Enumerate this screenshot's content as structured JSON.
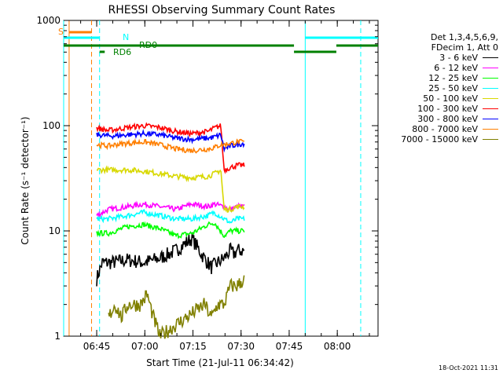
{
  "chart_data": {
    "type": "line",
    "title": "RHESSI Observing Summary Count Rates",
    "xlabel": "Start Time (21-Jul-11 06:34:42)",
    "ylabel": "Count Rate (s⁻¹ detector⁻¹)",
    "yscale": "log",
    "ylim": [
      1,
      1000
    ],
    "y_ticks": [
      1,
      10,
      100,
      1000
    ],
    "x_ticks": [
      "06:45",
      "07:00",
      "07:15",
      "07:30",
      "07:45",
      "08:00"
    ],
    "x_range_minutes": [
      0,
      98
    ],
    "legend_placement": "outside-right",
    "legend_header": [
      "Det 1,3,4,5,6,9,",
      "FDecim 1, Att 0"
    ],
    "grid": false,
    "flags": [
      {
        "label": "SAA",
        "text": "S",
        "color": "#ff7f00"
      },
      {
        "label": "Night",
        "text": "N",
        "color": "#00ffff"
      },
      {
        "label": "Decimation",
        "text": "RD0",
        "color": "#008000"
      },
      {
        "label": "Decimation",
        "text": "RD6",
        "color": "#008000"
      }
    ],
    "series": [
      {
        "name": "3 - 6 keV",
        "color": "#000000",
        "x": [
          10.3,
          12,
          15,
          20,
          25,
          30,
          35,
          40,
          43,
          46,
          50,
          52,
          53,
          54,
          56.4
        ],
        "y": [
          3.5,
          5.0,
          5.0,
          5.3,
          5.0,
          5.5,
          6.5,
          8.5,
          6.0,
          4.5,
          5.5,
          6.5,
          6.0,
          6.5,
          6.5
        ]
      },
      {
        "name": "6 - 12 keV",
        "color": "#ff00ff",
        "x": [
          10.3,
          14,
          20,
          25,
          30,
          35,
          40,
          45,
          47,
          50,
          52,
          54,
          56.4
        ],
        "y": [
          14,
          16,
          17,
          18,
          17,
          16,
          18,
          17,
          18,
          17,
          16,
          17,
          17
        ]
      },
      {
        "name": "12 - 25 keV",
        "color": "#00ff00",
        "x": [
          10.3,
          14,
          20,
          25,
          30,
          35,
          40,
          45,
          47,
          50,
          52,
          54,
          56.4
        ],
        "y": [
          9.5,
          9.5,
          11,
          11.5,
          10.5,
          9,
          9.5,
          11.5,
          12,
          9.0,
          10,
          10,
          10
        ]
      },
      {
        "name": "25 - 50 keV",
        "color": "#00ffff",
        "x": [
          10.3,
          14,
          20,
          25,
          30,
          35,
          40,
          45,
          47,
          50,
          52,
          54,
          56.4
        ],
        "y": [
          13,
          13,
          14,
          15,
          14,
          13,
          13,
          14,
          15,
          13,
          12,
          13,
          13
        ]
      },
      {
        "name": "50 - 100 keV",
        "color": "#d8d800",
        "x": [
          10.3,
          14,
          20,
          25,
          30,
          35,
          40,
          45,
          47,
          49,
          50,
          52,
          54,
          56.4
        ],
        "y": [
          38,
          38,
          38,
          37,
          35,
          33,
          32,
          33,
          35,
          38,
          16,
          16,
          17,
          17
        ]
      },
      {
        "name": "100 - 300 keV",
        "color": "#ff0000",
        "x": [
          10.3,
          14,
          16,
          20,
          25,
          30,
          35,
          40,
          45,
          47,
          49,
          50,
          52,
          54,
          56.4
        ],
        "y": [
          95,
          90,
          92,
          96,
          100,
          96,
          88,
          84,
          88,
          95,
          100,
          38,
          40,
          42,
          42
        ]
      },
      {
        "name": "300 - 800 keV",
        "color": "#0000ff",
        "x": [
          10.3,
          14,
          16,
          20,
          25,
          30,
          35,
          40,
          45,
          47,
          49,
          50,
          52,
          54,
          56.4
        ],
        "y": [
          82,
          80,
          80,
          82,
          84,
          82,
          76,
          74,
          76,
          78,
          82,
          60,
          64,
          66,
          68
        ]
      },
      {
        "name": "800 - 7000 keV",
        "color": "#ff7f00",
        "x": [
          10.3,
          14,
          16,
          20,
          25,
          30,
          35,
          40,
          45,
          47,
          49,
          50,
          52,
          54,
          56.4
        ],
        "y": [
          66,
          64,
          66,
          68,
          70,
          66,
          60,
          58,
          60,
          62,
          66,
          66,
          68,
          70,
          70
        ]
      },
      {
        "name": "7000 - 15000 keV",
        "color": "#808000",
        "x": [
          14,
          16,
          18,
          20,
          22,
          24,
          26,
          28,
          30,
          44,
          46,
          48,
          50,
          52,
          54,
          56.4
        ],
        "y": [
          1.5,
          2.0,
          1.5,
          2.0,
          2.0,
          2.0,
          2.5,
          1.5,
          1.0,
          2.0,
          1.5,
          2.0,
          2.0,
          3.0,
          3.0,
          3.5
        ]
      }
    ]
  },
  "footnote": "18-Oct-2021 11:31"
}
